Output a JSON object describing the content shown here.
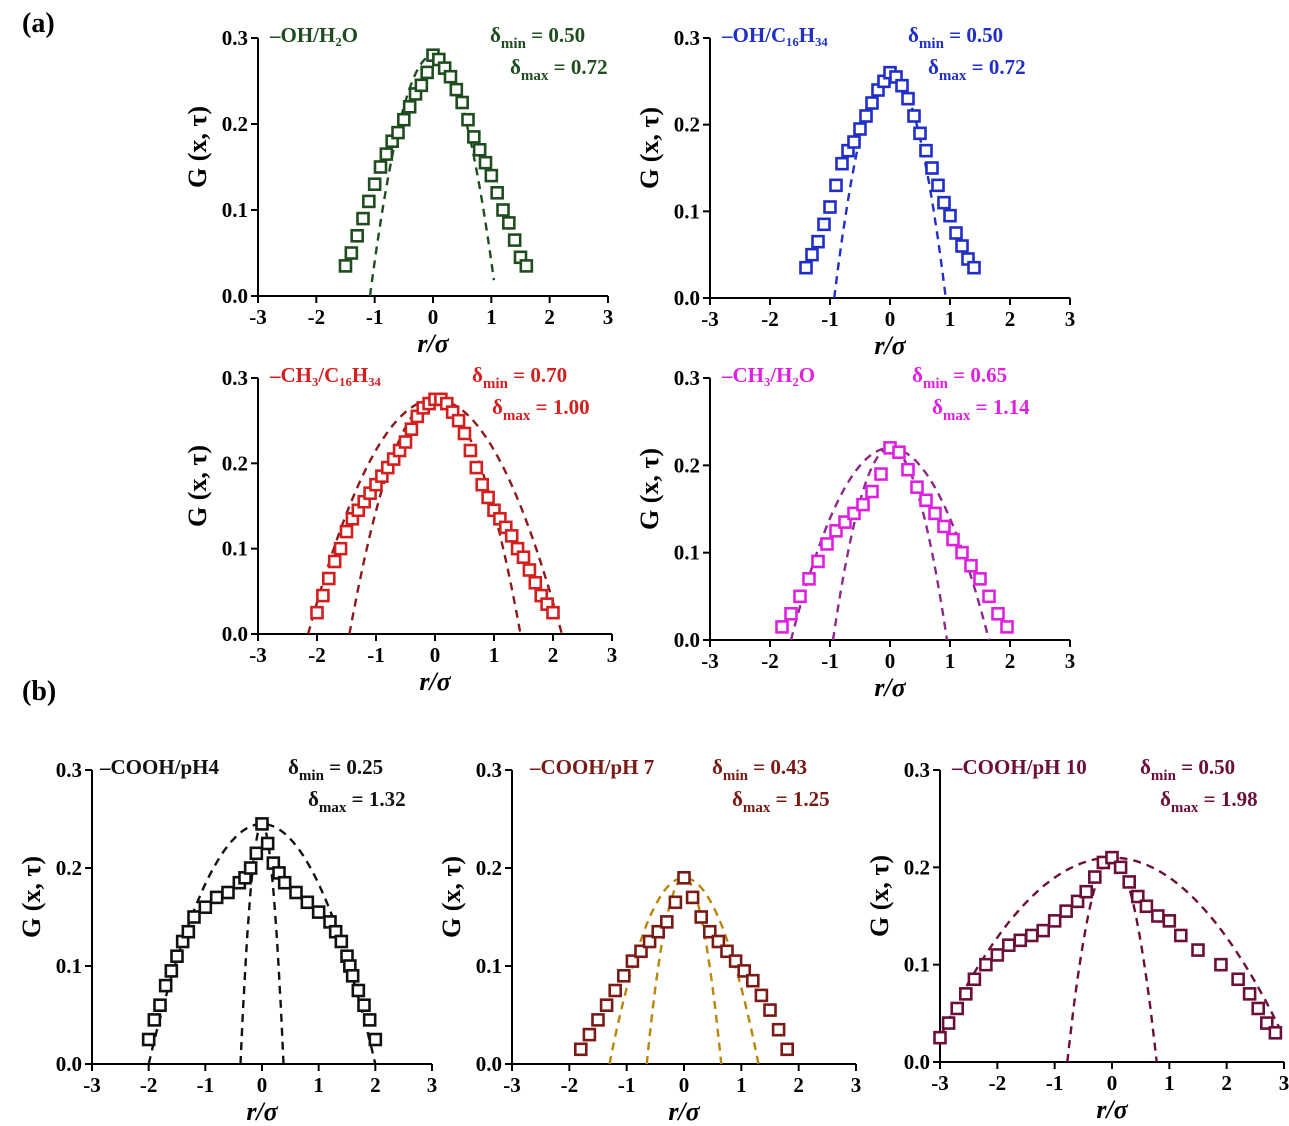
{
  "figure": {
    "panel_a_label": "(a)",
    "panel_b_label": "(b)"
  },
  "chart_data": [
    {
      "type": "scatter",
      "color": "#1f4d1f",
      "label": "–OH/H₂O",
      "delta_min": "δmin = 0.50",
      "delta_max": "δmax = 0.72",
      "xlabel": "r/σ",
      "ylabel": "G (x, τ)",
      "xlim": [
        -3,
        3
      ],
      "ylim": [
        0,
        0.3
      ],
      "xticks": [
        "-3",
        "-2",
        "-1",
        "0",
        "1",
        "2",
        "3"
      ],
      "yticks": [
        "0.0",
        "0.1",
        "0.2",
        "0.3"
      ],
      "points": {
        "x": [
          -1.5,
          -1.4,
          -1.3,
          -1.2,
          -1.1,
          -1.0,
          -0.9,
          -0.8,
          -0.7,
          -0.6,
          -0.5,
          -0.4,
          -0.3,
          -0.2,
          -0.1,
          0.0,
          0.1,
          0.2,
          0.3,
          0.4,
          0.5,
          0.6,
          0.7,
          0.8,
          0.9,
          1.0,
          1.1,
          1.2,
          1.3,
          1.4,
          1.5,
          1.6
        ],
        "y": [
          0.035,
          0.05,
          0.07,
          0.09,
          0.11,
          0.13,
          0.15,
          0.165,
          0.18,
          0.19,
          0.205,
          0.22,
          0.235,
          0.245,
          0.26,
          0.28,
          0.275,
          0.265,
          0.255,
          0.24,
          0.225,
          0.205,
          0.185,
          0.17,
          0.155,
          0.14,
          0.12,
          0.1,
          0.085,
          0.065,
          0.045,
          0.035
        ]
      },
      "fit_curves": [
        {
          "x0": 0.0,
          "y0": 0.28,
          "half_width": 1.08
        }
      ]
    },
    {
      "type": "scatter",
      "color": "#1f2fc8",
      "label": "–OH/C₁₆H₃₄",
      "delta_min": "δmin = 0.50",
      "delta_max": "δmax = 0.72",
      "xlabel": "r/σ",
      "ylabel": "G (x, τ)",
      "xlim": [
        -3,
        3
      ],
      "ylim": [
        0,
        0.3
      ],
      "xticks": [
        "-3",
        "-2",
        "-1",
        "0",
        "1",
        "2",
        "3"
      ],
      "yticks": [
        "0.0",
        "0.1",
        "0.2",
        "0.3"
      ],
      "points": {
        "x": [
          -1.4,
          -1.3,
          -1.2,
          -1.1,
          -1.0,
          -0.9,
          -0.8,
          -0.7,
          -0.6,
          -0.5,
          -0.4,
          -0.3,
          -0.2,
          -0.1,
          0.0,
          0.1,
          0.2,
          0.3,
          0.4,
          0.5,
          0.6,
          0.7,
          0.8,
          0.9,
          1.0,
          1.1,
          1.2,
          1.3,
          1.4
        ],
        "y": [
          0.035,
          0.05,
          0.065,
          0.085,
          0.105,
          0.13,
          0.155,
          0.17,
          0.18,
          0.195,
          0.21,
          0.225,
          0.24,
          0.25,
          0.26,
          0.255,
          0.245,
          0.23,
          0.21,
          0.19,
          0.17,
          0.15,
          0.13,
          0.11,
          0.095,
          0.075,
          0.06,
          0.045,
          0.035
        ]
      },
      "fit_curves": [
        {
          "x0": 0.0,
          "y0": 0.26,
          "half_width": 0.93
        }
      ]
    },
    {
      "type": "scatter",
      "color": "#d41f1f",
      "curve_color": "#8b1a1a",
      "label": "–CH₃/C₁₆H₃₄",
      "delta_min": "δmin = 0.70",
      "delta_max": "δmax = 1.00",
      "xlabel": "r/σ",
      "ylabel": "G (x, τ)",
      "xlim": [
        -3,
        3
      ],
      "ylim": [
        0,
        0.3
      ],
      "xticks": [
        "-3",
        "-2",
        "-1",
        "0",
        "1",
        "2",
        "3"
      ],
      "yticks": [
        "0.0",
        "0.1",
        "0.2",
        "0.3"
      ],
      "points": {
        "x": [
          -2.0,
          -1.9,
          -1.8,
          -1.7,
          -1.6,
          -1.5,
          -1.4,
          -1.3,
          -1.2,
          -1.1,
          -1.0,
          -0.9,
          -0.8,
          -0.7,
          -0.6,
          -0.5,
          -0.4,
          -0.3,
          -0.2,
          -0.1,
          0.0,
          0.1,
          0.2,
          0.3,
          0.4,
          0.5,
          0.6,
          0.7,
          0.8,
          0.9,
          1.0,
          1.1,
          1.2,
          1.3,
          1.4,
          1.5,
          1.6,
          1.7,
          1.8,
          1.9,
          2.0
        ],
        "y": [
          0.025,
          0.045,
          0.065,
          0.085,
          0.1,
          0.12,
          0.135,
          0.145,
          0.155,
          0.165,
          0.175,
          0.185,
          0.195,
          0.205,
          0.215,
          0.225,
          0.24,
          0.255,
          0.265,
          0.27,
          0.275,
          0.275,
          0.27,
          0.26,
          0.25,
          0.235,
          0.215,
          0.195,
          0.175,
          0.16,
          0.145,
          0.135,
          0.125,
          0.115,
          0.1,
          0.09,
          0.075,
          0.06,
          0.045,
          0.035,
          0.025
        ]
      },
      "fit_curves": [
        {
          "x0": 0.0,
          "y0": 0.275,
          "half_width": 1.45
        },
        {
          "x0": 0.0,
          "y0": 0.275,
          "half_width": 2.15
        }
      ]
    },
    {
      "type": "scatter",
      "color": "#e020e0",
      "curve_color": "#8b2a8b",
      "label": "–CH₃/H₂O",
      "delta_min": "δmin = 0.65",
      "delta_max": "δmax = 1.14",
      "xlabel": "r/σ",
      "ylabel": "G (x, τ)",
      "xlim": [
        -3,
        3
      ],
      "ylim": [
        0,
        0.3
      ],
      "xticks": [
        "-3",
        "-2",
        "-1",
        "0",
        "1",
        "2",
        "3"
      ],
      "yticks": [
        "0.0",
        "0.1",
        "0.2",
        "0.3"
      ],
      "points": {
        "x": [
          -1.8,
          -1.65,
          -1.5,
          -1.35,
          -1.2,
          -1.05,
          -0.9,
          -0.75,
          -0.6,
          -0.45,
          -0.3,
          -0.15,
          0.0,
          0.15,
          0.3,
          0.45,
          0.6,
          0.75,
          0.9,
          1.05,
          1.2,
          1.35,
          1.5,
          1.65,
          1.8,
          1.95
        ],
        "y": [
          0.015,
          0.03,
          0.05,
          0.07,
          0.09,
          0.11,
          0.125,
          0.135,
          0.145,
          0.155,
          0.17,
          0.19,
          0.22,
          0.215,
          0.195,
          0.175,
          0.16,
          0.145,
          0.13,
          0.115,
          0.1,
          0.085,
          0.07,
          0.05,
          0.03,
          0.015
        ]
      },
      "fit_curves": [
        {
          "x0": 0.0,
          "y0": 0.22,
          "half_width": 0.95
        },
        {
          "x0": 0.0,
          "y0": 0.22,
          "half_width": 1.65
        }
      ]
    },
    {
      "type": "scatter",
      "color": "#111111",
      "label": "–COOH/pH4",
      "delta_min": "δmin = 0.25",
      "delta_max": "δmax = 1.32",
      "xlabel": "r/σ",
      "ylabel": "G (x, τ)",
      "xlim": [
        -3,
        3
      ],
      "ylim": [
        0,
        0.3
      ],
      "xticks": [
        "-3",
        "-2",
        "-1",
        "0",
        "1",
        "2",
        "3"
      ],
      "yticks": [
        "0.0",
        "0.1",
        "0.2",
        "0.3"
      ],
      "points": {
        "x": [
          -2.0,
          -1.9,
          -1.8,
          -1.7,
          -1.6,
          -1.5,
          -1.4,
          -1.3,
          -1.2,
          -1.0,
          -0.8,
          -0.6,
          -0.4,
          -0.3,
          -0.2,
          -0.1,
          0.0,
          0.1,
          0.2,
          0.3,
          0.4,
          0.6,
          0.8,
          1.0,
          1.2,
          1.3,
          1.4,
          1.5,
          1.55,
          1.6,
          1.7,
          1.8,
          1.9,
          2.0
        ],
        "y": [
          0.025,
          0.045,
          0.06,
          0.08,
          0.095,
          0.11,
          0.125,
          0.135,
          0.15,
          0.16,
          0.17,
          0.175,
          0.185,
          0.19,
          0.2,
          0.215,
          0.245,
          0.225,
          0.205,
          0.195,
          0.185,
          0.175,
          0.165,
          0.155,
          0.145,
          0.135,
          0.125,
          0.11,
          0.1,
          0.09,
          0.075,
          0.06,
          0.045,
          0.025
        ]
      },
      "fit_curves": [
        {
          "x0": 0.0,
          "y0": 0.245,
          "half_width": 0.38
        },
        {
          "x0": 0.0,
          "y0": 0.245,
          "half_width": 2.0
        }
      ]
    },
    {
      "type": "scatter",
      "color": "#7a1a14",
      "curve_color": "#b8860b",
      "label": "–COOH/pH 7",
      "delta_min": "δmin = 0.43",
      "delta_max": "δmax = 1.25",
      "xlabel": "r/σ",
      "ylabel": "G (x, τ)",
      "xlim": [
        -3,
        3
      ],
      "ylim": [
        0,
        0.3
      ],
      "xticks": [
        "-3",
        "-2",
        "-1",
        "0",
        "1",
        "2",
        "3"
      ],
      "yticks": [
        "0.0",
        "0.1",
        "0.2",
        "0.3"
      ],
      "points": {
        "x": [
          -1.8,
          -1.65,
          -1.5,
          -1.35,
          -1.2,
          -1.05,
          -0.9,
          -0.75,
          -0.6,
          -0.45,
          -0.3,
          -0.15,
          0.0,
          0.15,
          0.3,
          0.45,
          0.6,
          0.75,
          0.9,
          1.05,
          1.2,
          1.35,
          1.5,
          1.65,
          1.8
        ],
        "y": [
          0.015,
          0.03,
          0.045,
          0.06,
          0.075,
          0.09,
          0.105,
          0.115,
          0.125,
          0.135,
          0.145,
          0.165,
          0.19,
          0.17,
          0.15,
          0.135,
          0.125,
          0.115,
          0.105,
          0.095,
          0.085,
          0.07,
          0.055,
          0.035,
          0.015
        ]
      },
      "fit_curves": [
        {
          "x0": 0.0,
          "y0": 0.19,
          "half_width": 0.65
        },
        {
          "x0": 0.0,
          "y0": 0.19,
          "half_width": 1.3
        }
      ]
    },
    {
      "type": "scatter",
      "color": "#6b0f3a",
      "label": "–COOH/pH 10",
      "delta_min": "δmin = 0.50",
      "delta_max": "δmax = 1.98",
      "xlabel": "r/σ",
      "ylabel": "G (x, τ)",
      "xlim": [
        -3,
        3
      ],
      "ylim": [
        0,
        0.3
      ],
      "xticks": [
        "-3",
        "-2",
        "-1",
        "0",
        "1",
        "2",
        "3"
      ],
      "yticks": [
        "0.0",
        "0.1",
        "0.2",
        "0.3"
      ],
      "points": {
        "x": [
          -3.0,
          -2.85,
          -2.7,
          -2.55,
          -2.4,
          -2.2,
          -2.0,
          -1.8,
          -1.6,
          -1.4,
          -1.2,
          -1.0,
          -0.8,
          -0.6,
          -0.45,
          -0.3,
          -0.15,
          0.0,
          0.15,
          0.3,
          0.45,
          0.6,
          0.8,
          1.0,
          1.2,
          1.5,
          1.9,
          2.2,
          2.4,
          2.55,
          2.7,
          2.85
        ],
        "y": [
          0.025,
          0.04,
          0.055,
          0.07,
          0.085,
          0.1,
          0.11,
          0.12,
          0.125,
          0.13,
          0.135,
          0.145,
          0.155,
          0.165,
          0.175,
          0.19,
          0.205,
          0.21,
          0.2,
          0.185,
          0.17,
          0.16,
          0.15,
          0.145,
          0.13,
          0.115,
          0.1,
          0.085,
          0.07,
          0.055,
          0.04,
          0.03
        ]
      },
      "fit_curves": [
        {
          "x0": 0.0,
          "y0": 0.21,
          "half_width": 0.78
        },
        {
          "x0": 0.0,
          "y0": 0.21,
          "half_width": 3.2
        }
      ]
    }
  ]
}
